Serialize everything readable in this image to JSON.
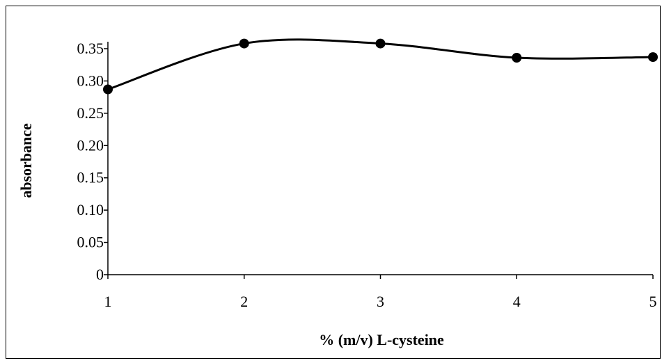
{
  "chart_data": {
    "type": "line",
    "title": "",
    "xlabel": "% (m/v) L-cysteine",
    "ylabel": "absorbance",
    "x": [
      1,
      2,
      3,
      4,
      5
    ],
    "series": [
      {
        "name": "",
        "values": [
          0.287,
          0.358,
          0.358,
          0.336,
          0.337
        ],
        "color": "#000000"
      }
    ],
    "xlim": [
      1,
      5
    ],
    "ylim": [
      0,
      0.35
    ],
    "xticks": [
      1,
      2,
      3,
      4,
      5
    ],
    "xtick_labels": [
      "1",
      "2",
      "3",
      "4",
      "5"
    ],
    "yticks": [
      0,
      0.05,
      0.1,
      0.15,
      0.2,
      0.25,
      0.3,
      0.35
    ],
    "ytick_labels": [
      "0",
      "0.05",
      "0.10",
      "0.15",
      "0.20",
      "0.25",
      "0.30",
      "0.35"
    ],
    "grid": false,
    "legend": "none",
    "smooth": true,
    "markers": "filled-circle"
  }
}
